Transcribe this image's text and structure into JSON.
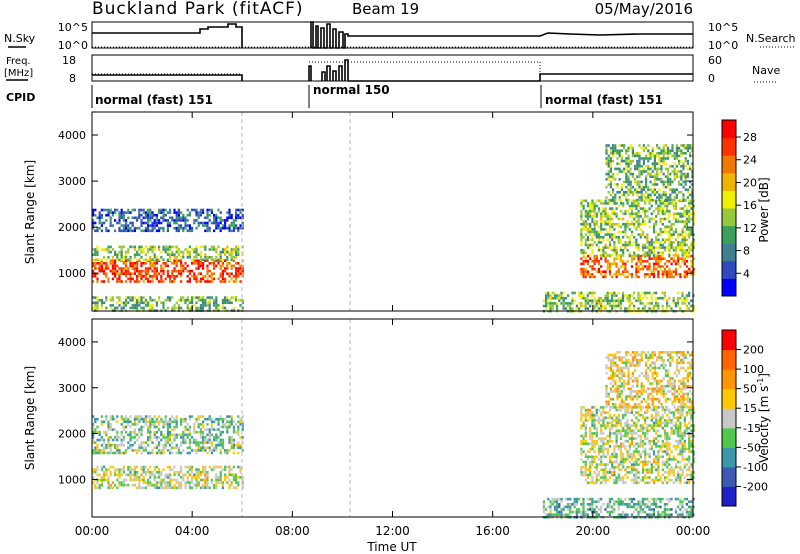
{
  "header": {
    "station": "Buckland Park (fitACF)",
    "beam": "Beam 19",
    "date": "05/May/2016"
  },
  "side_labels": {
    "nsky": "N.Sky",
    "nsearch": "N.Search",
    "freq_line1": "Freq.",
    "freq_line2": "[MHz]",
    "nave": "Nave",
    "cpid": "CPID"
  },
  "noise_axis": {
    "left_ticks": [
      "10^5",
      "10^0"
    ],
    "right_ticks": [
      "10^5",
      "10^0"
    ]
  },
  "freq_axis": {
    "left_ticks": [
      "18",
      "8"
    ],
    "right_ticks": [
      "60",
      "0"
    ]
  },
  "cpid_modes": [
    "normal (fast) 151",
    "normal 150",
    "normal (fast) 151"
  ],
  "x_axis": {
    "label": "Time UT",
    "ticks": [
      "00:00",
      "04:00",
      "08:00",
      "12:00",
      "16:00",
      "20:00",
      "00:00"
    ],
    "hours": [
      0,
      4,
      8,
      12,
      16,
      20,
      24
    ],
    "range_hours": [
      0,
      24
    ]
  },
  "chart_data": [
    {
      "type": "heatmap",
      "name": "power",
      "ylabel": "Slant Range [km]",
      "yticks": [
        "1000",
        "2000",
        "3000",
        "4000"
      ],
      "ytick_values": [
        1000,
        2000,
        3000,
        4000
      ],
      "ylim": [
        180,
        4500
      ],
      "xlim_hours": [
        0,
        24
      ],
      "colorbar": {
        "label": "Power [dB]",
        "ticks": [
          "4",
          "8",
          "12",
          "16",
          "20",
          "24",
          "28"
        ],
        "tick_values": [
          4,
          8,
          12,
          16,
          20,
          24,
          28
        ],
        "range": [
          0,
          31
        ],
        "colors": [
          "#0000ff",
          "#2d4bbf",
          "#3f7f8f",
          "#3aa05a",
          "#96c83c",
          "#f0f000",
          "#f0b400",
          "#f07800",
          "#ff3200",
          "#ff0000"
        ]
      },
      "echo_bands": [
        {
          "t0": 0.0,
          "t1": 6.0,
          "r0": 800,
          "r1": 1300,
          "level": 26
        },
        {
          "t0": 0.0,
          "t1": 6.0,
          "r0": 1300,
          "r1": 1600,
          "level": 14
        },
        {
          "t0": 0.0,
          "t1": 6.0,
          "r0": 1900,
          "r1": 2400,
          "level": 6
        },
        {
          "t0": 0.0,
          "t1": 6.0,
          "r0": 180,
          "r1": 500,
          "level": 12
        },
        {
          "t0": 18.0,
          "t1": 24.0,
          "r0": 180,
          "r1": 600,
          "level": 14
        },
        {
          "t0": 19.5,
          "t1": 24.0,
          "r0": 900,
          "r1": 1400,
          "level": 24
        },
        {
          "t0": 19.5,
          "t1": 24.0,
          "r0": 1400,
          "r1": 2600,
          "level": 14
        },
        {
          "t0": 20.5,
          "t1": 24.0,
          "r0": 2600,
          "r1": 3800,
          "level": 12
        }
      ]
    },
    {
      "type": "heatmap",
      "name": "velocity",
      "ylabel": "Slant Range [km]",
      "yticks": [
        "1000",
        "2000",
        "3000",
        "4000"
      ],
      "ytick_values": [
        1000,
        2000,
        3000,
        4000
      ],
      "ylim": [
        180,
        4500
      ],
      "xlim_hours": [
        0,
        24
      ],
      "colorbar": {
        "label": "Velocity [m s^-1]",
        "ticks": [
          "200",
          "100",
          "50",
          "15",
          "-15",
          "-50",
          "-100",
          "-200"
        ],
        "tick_values": [
          200,
          100,
          50,
          15,
          -15,
          -50,
          -100,
          -200
        ],
        "range": [
          -250,
          250
        ],
        "colors": [
          "#2020c8",
          "#3c5ab4",
          "#3c96aa",
          "#50c850",
          "#c8c8c8",
          "#ffc800",
          "#ff9600",
          "#ff6400",
          "#ff0000"
        ]
      },
      "echo_bands": [
        {
          "t0": 0.0,
          "t1": 6.0,
          "r0": 800,
          "r1": 1300,
          "level": 0
        },
        {
          "t0": 0.0,
          "t1": 6.0,
          "r0": 1600,
          "r1": 2400,
          "level": -40
        },
        {
          "t0": 18.0,
          "t1": 24.0,
          "r0": 180,
          "r1": 600,
          "level": -60
        },
        {
          "t0": 19.5,
          "t1": 24.0,
          "r0": 900,
          "r1": 2600,
          "level": 0
        },
        {
          "t0": 20.5,
          "t1": 24.0,
          "r0": 2600,
          "r1": 3800,
          "level": 40
        }
      ]
    }
  ]
}
